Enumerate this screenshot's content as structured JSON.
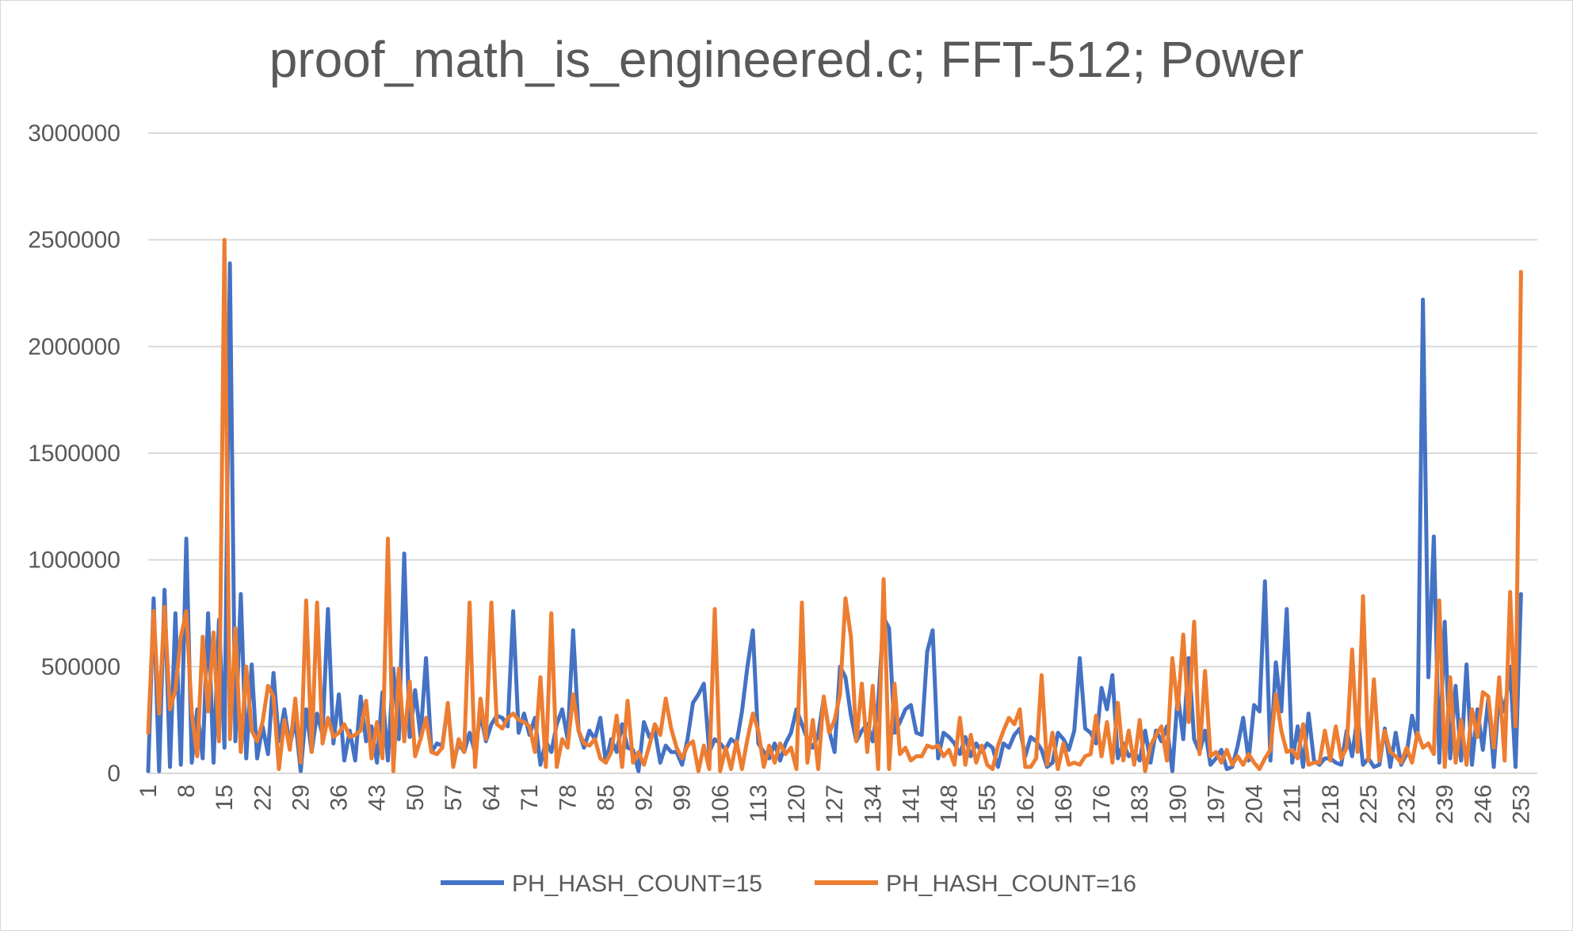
{
  "chart_data": {
    "type": "line",
    "title": "proof_math_is_engineered.c; FFT-512; Power",
    "xlabel": "",
    "ylabel": "",
    "ylim": [
      0,
      3000000
    ],
    "yticks": [
      0,
      500000,
      1000000,
      1500000,
      2000000,
      2500000,
      3000000
    ],
    "ytick_labels": [
      "0",
      "500000",
      "1000000",
      "1500000",
      "2000000",
      "2500000",
      "3000000"
    ],
    "x_range": [
      1,
      256
    ],
    "xtick_labels": [
      "1",
      "8",
      "15",
      "22",
      "29",
      "36",
      "43",
      "50",
      "57",
      "64",
      "71",
      "78",
      "85",
      "92",
      "99",
      "106",
      "113",
      "120",
      "127",
      "134",
      "141",
      "148",
      "155",
      "162",
      "169",
      "176",
      "183",
      "190",
      "197",
      "204",
      "211",
      "218",
      "225",
      "232",
      "239",
      "246",
      "253"
    ],
    "grid": "horizontal",
    "legend": "bottom",
    "series": [
      {
        "name": "PH_HASH_COUNT=15",
        "color": "#4472C4",
        "values": [
          10000,
          820000,
          10000,
          860000,
          30000,
          750000,
          40000,
          1100000,
          50000,
          300000,
          70000,
          750000,
          50000,
          720000,
          120000,
          2390000,
          150000,
          840000,
          70000,
          510000,
          70000,
          220000,
          90000,
          470000,
          150000,
          300000,
          130000,
          250000,
          10000,
          300000,
          100000,
          280000,
          180000,
          770000,
          140000,
          370000,
          60000,
          200000,
          60000,
          360000,
          150000,
          220000,
          50000,
          380000,
          60000,
          490000,
          160000,
          1030000,
          170000,
          390000,
          170000,
          540000,
          100000,
          140000,
          130000,
          320000,
          50000,
          140000,
          100000,
          190000,
          100000,
          280000,
          150000,
          230000,
          270000,
          260000,
          220000,
          760000,
          190000,
          280000,
          180000,
          260000,
          40000,
          150000,
          100000,
          230000,
          300000,
          160000,
          670000,
          200000,
          120000,
          200000,
          160000,
          260000,
          50000,
          160000,
          100000,
          230000,
          120000,
          110000,
          10000,
          240000,
          170000,
          200000,
          50000,
          130000,
          100000,
          100000,
          40000,
          160000,
          330000,
          370000,
          420000,
          100000,
          160000,
          140000,
          110000,
          160000,
          140000,
          290000,
          500000,
          670000,
          140000,
          100000,
          70000,
          140000,
          60000,
          140000,
          190000,
          300000,
          230000,
          160000,
          120000,
          180000,
          350000,
          200000,
          100000,
          500000,
          450000,
          270000,
          150000,
          200000,
          230000,
          150000,
          330000,
          730000,
          680000,
          190000,
          240000,
          300000,
          320000,
          190000,
          180000,
          570000,
          670000,
          70000,
          190000,
          170000,
          140000,
          90000,
          170000,
          80000,
          140000,
          100000,
          140000,
          120000,
          30000,
          140000,
          120000,
          180000,
          210000,
          80000,
          170000,
          150000,
          110000,
          30000,
          50000,
          190000,
          160000,
          110000,
          200000,
          540000,
          210000,
          190000,
          140000,
          400000,
          300000,
          460000,
          70000,
          140000,
          80000,
          100000,
          60000,
          200000,
          50000,
          200000,
          150000,
          220000,
          10000,
          370000,
          160000,
          540000,
          160000,
          100000,
          200000,
          40000,
          70000,
          110000,
          20000,
          30000,
          130000,
          260000,
          60000,
          320000,
          290000,
          900000,
          60000,
          520000,
          290000,
          770000,
          50000,
          220000,
          30000,
          280000,
          60000,
          40000,
          70000,
          70000,
          50000,
          40000,
          200000,
          80000,
          270000,
          40000,
          70000,
          30000,
          40000,
          210000,
          30000,
          190000,
          40000,
          90000,
          270000,
          160000,
          2220000,
          450000,
          1110000,
          50000,
          710000,
          70000,
          410000,
          60000,
          510000,
          40000,
          300000,
          110000,
          350000,
          30000,
          380000,
          290000,
          500000,
          30000,
          840000
        ]
      },
      {
        "name": "PH_HASH_COUNT=16",
        "color": "#ED7D31",
        "values": [
          190000,
          760000,
          280000,
          780000,
          300000,
          390000,
          640000,
          760000,
          280000,
          80000,
          640000,
          290000,
          660000,
          150000,
          2500000,
          160000,
          680000,
          100000,
          500000,
          200000,
          150000,
          240000,
          410000,
          360000,
          20000,
          250000,
          110000,
          350000,
          50000,
          810000,
          100000,
          800000,
          140000,
          260000,
          170000,
          190000,
          230000,
          170000,
          180000,
          200000,
          340000,
          70000,
          240000,
          70000,
          1100000,
          10000,
          490000,
          150000,
          430000,
          80000,
          160000,
          260000,
          100000,
          90000,
          120000,
          330000,
          30000,
          160000,
          100000,
          800000,
          30000,
          350000,
          160000,
          800000,
          230000,
          210000,
          260000,
          280000,
          250000,
          240000,
          220000,
          100000,
          450000,
          30000,
          750000,
          30000,
          160000,
          120000,
          370000,
          200000,
          140000,
          130000,
          160000,
          70000,
          50000,
          100000,
          270000,
          30000,
          340000,
          50000,
          100000,
          40000,
          130000,
          230000,
          180000,
          350000,
          210000,
          120000,
          70000,
          130000,
          150000,
          10000,
          130000,
          20000,
          770000,
          10000,
          120000,
          20000,
          150000,
          20000,
          160000,
          280000,
          200000,
          30000,
          130000,
          50000,
          140000,
          90000,
          120000,
          20000,
          800000,
          50000,
          250000,
          20000,
          360000,
          190000,
          250000,
          370000,
          820000,
          640000,
          150000,
          420000,
          100000,
          410000,
          20000,
          910000,
          20000,
          420000,
          90000,
          120000,
          60000,
          80000,
          80000,
          130000,
          120000,
          130000,
          80000,
          110000,
          40000,
          260000,
          40000,
          180000,
          50000,
          130000,
          40000,
          20000,
          130000,
          200000,
          260000,
          230000,
          300000,
          30000,
          30000,
          70000,
          460000,
          40000,
          190000,
          20000,
          140000,
          40000,
          50000,
          40000,
          80000,
          90000,
          270000,
          80000,
          240000,
          50000,
          330000,
          60000,
          200000,
          40000,
          250000,
          10000,
          130000,
          180000,
          220000,
          60000,
          540000,
          300000,
          650000,
          240000,
          710000,
          90000,
          480000,
          80000,
          100000,
          50000,
          110000,
          40000,
          80000,
          40000,
          90000,
          50000,
          20000,
          70000,
          110000,
          370000,
          200000,
          100000,
          110000,
          70000,
          230000,
          40000,
          50000,
          50000,
          200000,
          60000,
          220000,
          70000,
          120000,
          580000,
          100000,
          830000,
          60000,
          440000,
          60000,
          200000,
          100000,
          80000,
          50000,
          120000,
          50000,
          190000,
          120000,
          140000,
          90000,
          810000,
          30000,
          450000,
          50000,
          250000,
          40000,
          300000,
          170000,
          380000,
          360000,
          120000,
          450000,
          60000,
          850000,
          220000,
          2350000
        ]
      }
    ]
  }
}
